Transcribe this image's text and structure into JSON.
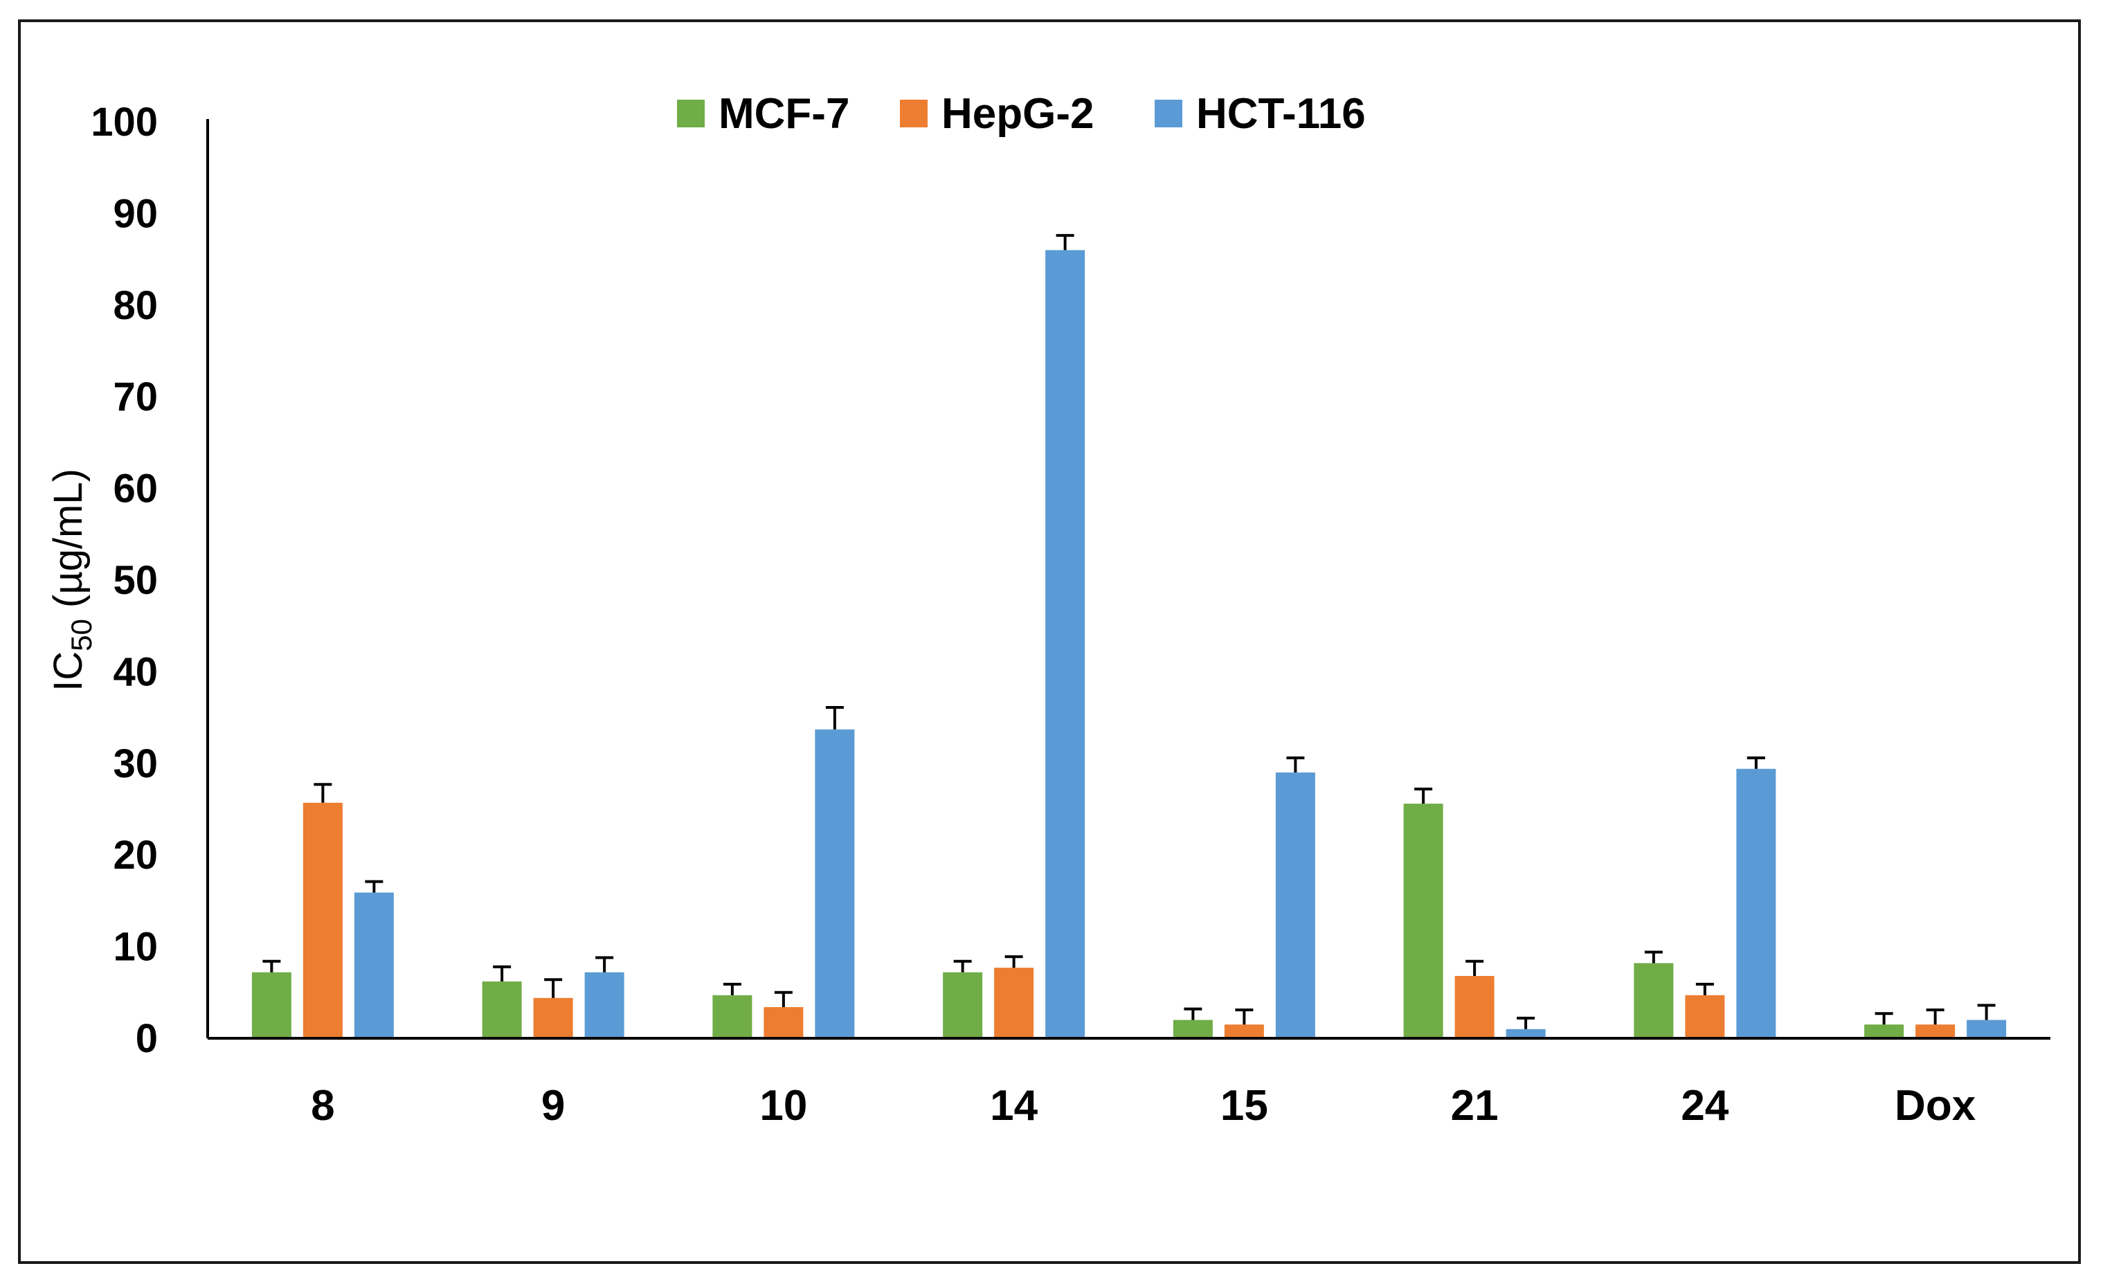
{
  "chart_data": {
    "type": "bar",
    "title": "",
    "xlabel": "",
    "ylabel": "IC50 (µg/mL)",
    "ylabel_parts": {
      "main": "IC",
      "sub": "50",
      "units": " (µg/mL)"
    },
    "ylim": [
      0,
      100
    ],
    "yticks": [
      0,
      10,
      20,
      30,
      40,
      50,
      60,
      70,
      80,
      90,
      100
    ],
    "grid": false,
    "legend_position": "top-center",
    "categories": [
      "8",
      "9",
      "10",
      "14",
      "15",
      "21",
      "24",
      "Dox"
    ],
    "series": [
      {
        "name": "MCF-7",
        "color": "#70AD47",
        "values": [
          7.2,
          6.2,
          4.7,
          7.2,
          2.0,
          25.6,
          8.2,
          1.5
        ],
        "errors": [
          1.2,
          1.6,
          1.2,
          1.2,
          1.2,
          1.6,
          1.2,
          1.2
        ]
      },
      {
        "name": "HepG-2",
        "color": "#ED7D31",
        "values": [
          25.7,
          4.4,
          3.4,
          7.7,
          1.5,
          6.8,
          4.7,
          1.5
        ],
        "errors": [
          2.0,
          2.0,
          1.6,
          1.2,
          1.6,
          1.6,
          1.2,
          1.6
        ]
      },
      {
        "name": "HCT-116",
        "color": "#5B9BD5",
        "values": [
          15.9,
          7.2,
          33.7,
          86.0,
          29.0,
          1.0,
          29.4,
          2.0
        ],
        "errors": [
          1.2,
          1.6,
          2.4,
          1.6,
          1.6,
          1.2,
          1.2,
          1.6
        ]
      }
    ]
  }
}
